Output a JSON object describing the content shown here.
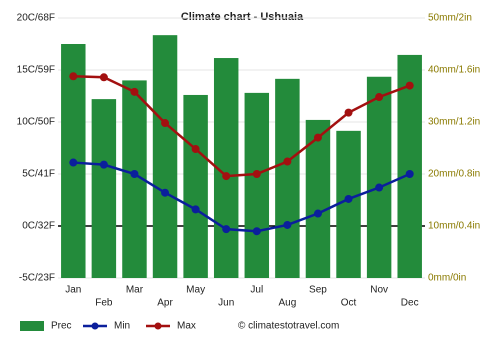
{
  "chart_data": {
    "type": "combo",
    "title": "Climate chart - Ushuaia",
    "categories": [
      "Jan",
      "Feb",
      "Mar",
      "Apr",
      "May",
      "Jun",
      "Jul",
      "Aug",
      "Sep",
      "Oct",
      "Nov",
      "Dec"
    ],
    "series": [
      {
        "name": "Prec",
        "type": "bar",
        "axis": "y2",
        "color": "#238b3b",
        "values": [
          45,
          34.4,
          38,
          46.7,
          35.2,
          42.3,
          35.6,
          38.3,
          30.4,
          28.3,
          38.7,
          42.9
        ]
      },
      {
        "name": "Min",
        "type": "line",
        "color": "#0b1f9c",
        "values": [
          6.1,
          5.9,
          5.0,
          3.2,
          1.6,
          -0.3,
          -0.5,
          0.1,
          1.2,
          2.6,
          3.7,
          5.0
        ]
      },
      {
        "name": "Max",
        "type": "line",
        "color": "#a31010",
        "values": [
          14.4,
          14.3,
          12.9,
          9.9,
          7.4,
          4.8,
          5.0,
          6.2,
          8.5,
          10.9,
          12.4,
          13.5
        ]
      }
    ],
    "ylim": [
      -5,
      20
    ],
    "yticks": [
      {
        "value": -5,
        "label": "-5C/23F"
      },
      {
        "value": 0,
        "label": "0C/32F"
      },
      {
        "value": 5,
        "label": "5C/41F"
      },
      {
        "value": 10,
        "label": "10C/50F"
      },
      {
        "value": 15,
        "label": "15C/59F"
      },
      {
        "value": 20,
        "label": "20C/68F"
      }
    ],
    "y2lim": [
      0,
      50
    ],
    "y2ticks": [
      {
        "value": 0,
        "label": "0mm/0in"
      },
      {
        "value": 10,
        "label": "10mm/0.4in"
      },
      {
        "value": 20,
        "label": "20mm/0.8in"
      },
      {
        "value": 30,
        "label": "30mm/1.2in"
      },
      {
        "value": 40,
        "label": "40mm/1.6in"
      },
      {
        "value": 50,
        "label": "50mm/2in"
      }
    ],
    "grid": true,
    "credit": "© climatestotravel.com"
  }
}
